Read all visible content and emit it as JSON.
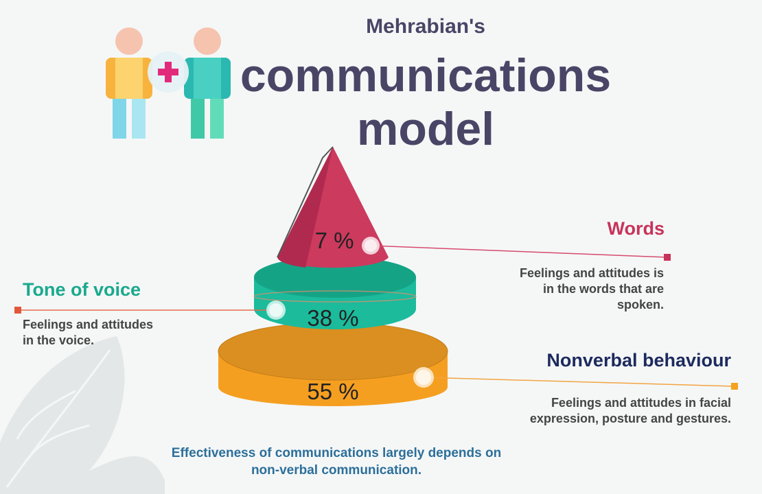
{
  "header": {
    "subtitle": "Mehrabian's",
    "title_line1": "communications",
    "title_line2": "model"
  },
  "segments": {
    "words": {
      "percent": "7 %",
      "heading": "Words",
      "description": [
        "Feelings and attitudes is",
        "in the words that are",
        "spoken."
      ],
      "color": "#c8335a"
    },
    "tone": {
      "percent": "38 %",
      "heading": "Tone of voice",
      "description": [
        "Feelings and attitudes",
        "in the voice."
      ],
      "color": "#1ab89a"
    },
    "nonverbal": {
      "percent": "55 %",
      "heading": "Nonverbal behaviour",
      "description": [
        "Feelings and attitudes in facial",
        "expression, posture and gestures."
      ],
      "color": "#f5a21e"
    }
  },
  "footer": {
    "line1": "Effectiveness of communications largely depends on",
    "line2": "non-verbal communication."
  },
  "colors": {
    "title": "#4a4566",
    "footer": "#2c6f9a",
    "nonverbal_heading": "#1d2a5e"
  },
  "icons": [
    "person-icon",
    "plus-icon",
    "leaf-icon"
  ]
}
